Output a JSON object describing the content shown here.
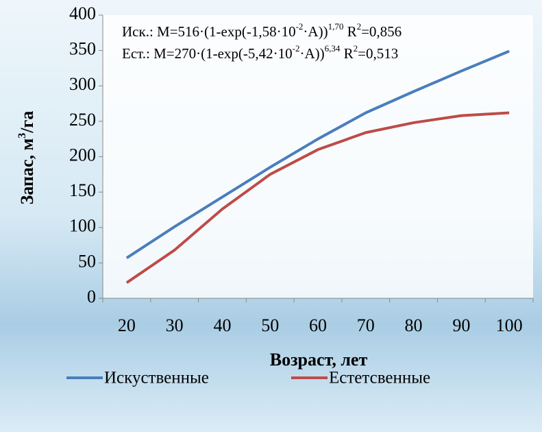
{
  "chart_data": {
    "type": "line",
    "annotations": [
      [
        {
          "text": "Иск.: M=516·(1-exp(-1,58·10",
          "sup": false
        },
        {
          "text": "-2",
          "sup": true
        },
        {
          "text": "·A))",
          "sup": false
        },
        {
          "text": "1,70",
          "sup": true
        },
        {
          "text": " R",
          "sup": false
        },
        {
          "text": "2",
          "sup": true
        },
        {
          "text": "=0,856",
          "sup": false
        }
      ],
      [
        {
          "text": "Ест.: M=270·(1-exp(-5,42·10",
          "sup": false
        },
        {
          "text": "-2",
          "sup": true
        },
        {
          "text": "·A))",
          "sup": false
        },
        {
          "text": "6,34",
          "sup": true
        },
        {
          "text": " R",
          "sup": false
        },
        {
          "text": "2",
          "sup": true
        },
        {
          "text": "=0,513",
          "sup": false
        }
      ]
    ],
    "ylabel": [
      {
        "text": "Запас, м",
        "sup": false
      },
      {
        "text": "3",
        "sup": true
      },
      {
        "text": "/га",
        "sup": false
      }
    ],
    "xlabel": "Возраст, лет",
    "categories": [
      "20",
      "30",
      "40",
      "50",
      "60",
      "70",
      "80",
      "90",
      "100"
    ],
    "series": [
      {
        "name": "Искуственные",
        "color": "#4a7ebb",
        "values": [
          57,
          101,
          143,
          185,
          225,
          262,
          292,
          321,
          349
        ]
      },
      {
        "name": "Естетсвенные",
        "color": "#be4b48",
        "values": [
          22,
          68,
          126,
          175,
          210,
          234,
          248,
          258,
          262
        ]
      }
    ],
    "ylim": [
      0,
      400
    ],
    "yticks": [
      0,
      50,
      100,
      150,
      200,
      250,
      300,
      350,
      400
    ],
    "grid": false,
    "legend": "bottom"
  }
}
